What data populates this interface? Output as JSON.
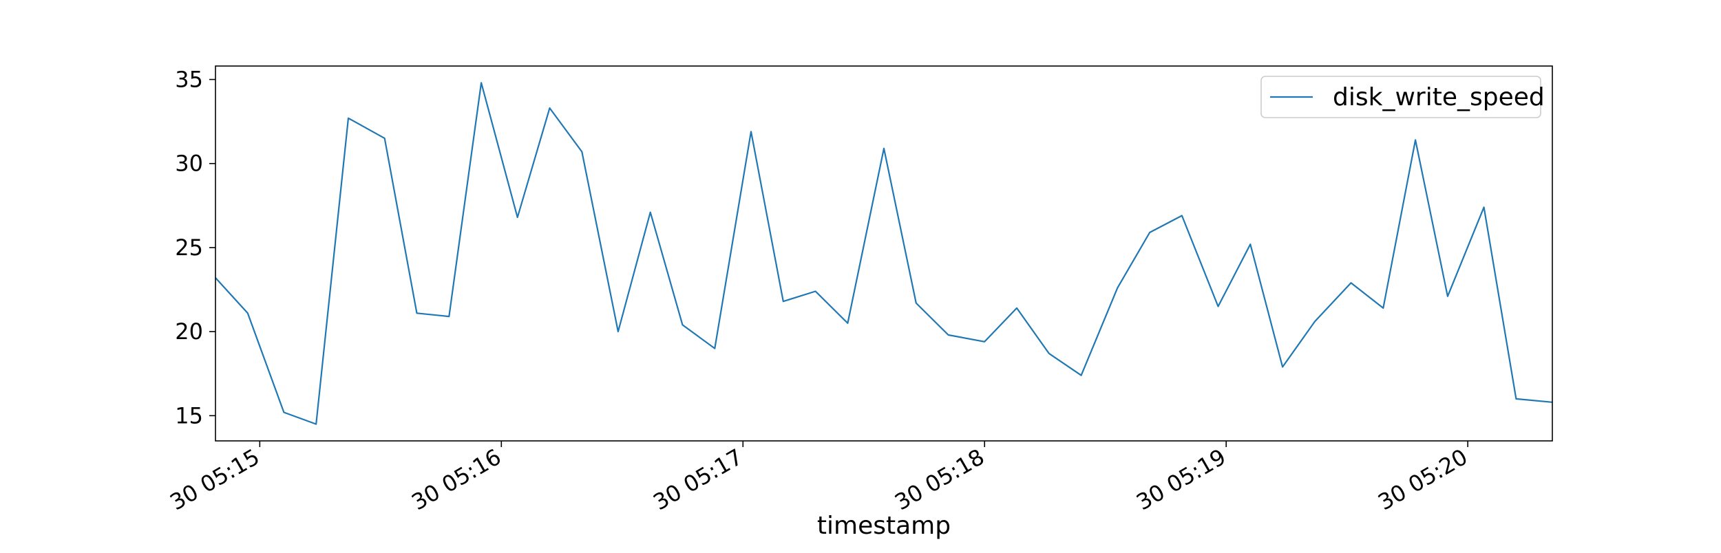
{
  "chart_data": {
    "type": "line",
    "title": "",
    "xlabel": "timestamp",
    "ylabel": "",
    "x_tick_labels": [
      "30 05:15",
      "30 05:16",
      "30 05:17",
      "30 05:18",
      "30 05:19",
      "30 05:20"
    ],
    "x_tick_times": [
      "05:15:00",
      "05:16:00",
      "05:17:00",
      "05:18:00",
      "05:19:00",
      "05:20:00"
    ],
    "y_ticks": [
      15,
      20,
      25,
      30,
      35
    ],
    "ylim": [
      13.5,
      35.8
    ],
    "xlim": [
      "05:14:49",
      "05:20:21"
    ],
    "legend_position": "top-right",
    "grid": false,
    "series": [
      {
        "name": "disk_write_speed",
        "color": "#1f77b4",
        "x": [
          "05:14:49",
          "05:14:57",
          "05:15:06",
          "05:15:14",
          "05:15:22",
          "05:15:31",
          "05:15:39",
          "05:15:47",
          "05:15:55",
          "05:16:04",
          "05:16:12",
          "05:16:20",
          "05:16:29",
          "05:16:37",
          "05:16:45",
          "05:16:53",
          "05:17:02",
          "05:17:10",
          "05:17:18",
          "05:17:26",
          "05:17:35",
          "05:17:43",
          "05:17:51",
          "05:18:00",
          "05:18:08",
          "05:18:16",
          "05:18:24",
          "05:18:33",
          "05:18:41",
          "05:18:49",
          "05:18:58",
          "05:19:06",
          "05:19:14",
          "05:19:22",
          "05:19:31",
          "05:19:39",
          "05:19:47",
          "05:19:55",
          "05:20:04",
          "05:20:12",
          "05:20:21"
        ],
        "y": [
          23.2,
          21.1,
          15.2,
          14.5,
          32.7,
          31.5,
          21.1,
          20.9,
          34.8,
          26.8,
          33.3,
          30.7,
          20.0,
          27.1,
          20.4,
          19.0,
          31.9,
          21.8,
          22.4,
          20.5,
          30.9,
          21.7,
          19.8,
          19.4,
          21.4,
          18.7,
          17.4,
          22.6,
          25.9,
          26.9,
          21.5,
          25.2,
          17.9,
          20.6,
          22.9,
          21.4,
          31.4,
          22.1,
          27.4,
          16.0,
          15.8
        ]
      }
    ]
  }
}
